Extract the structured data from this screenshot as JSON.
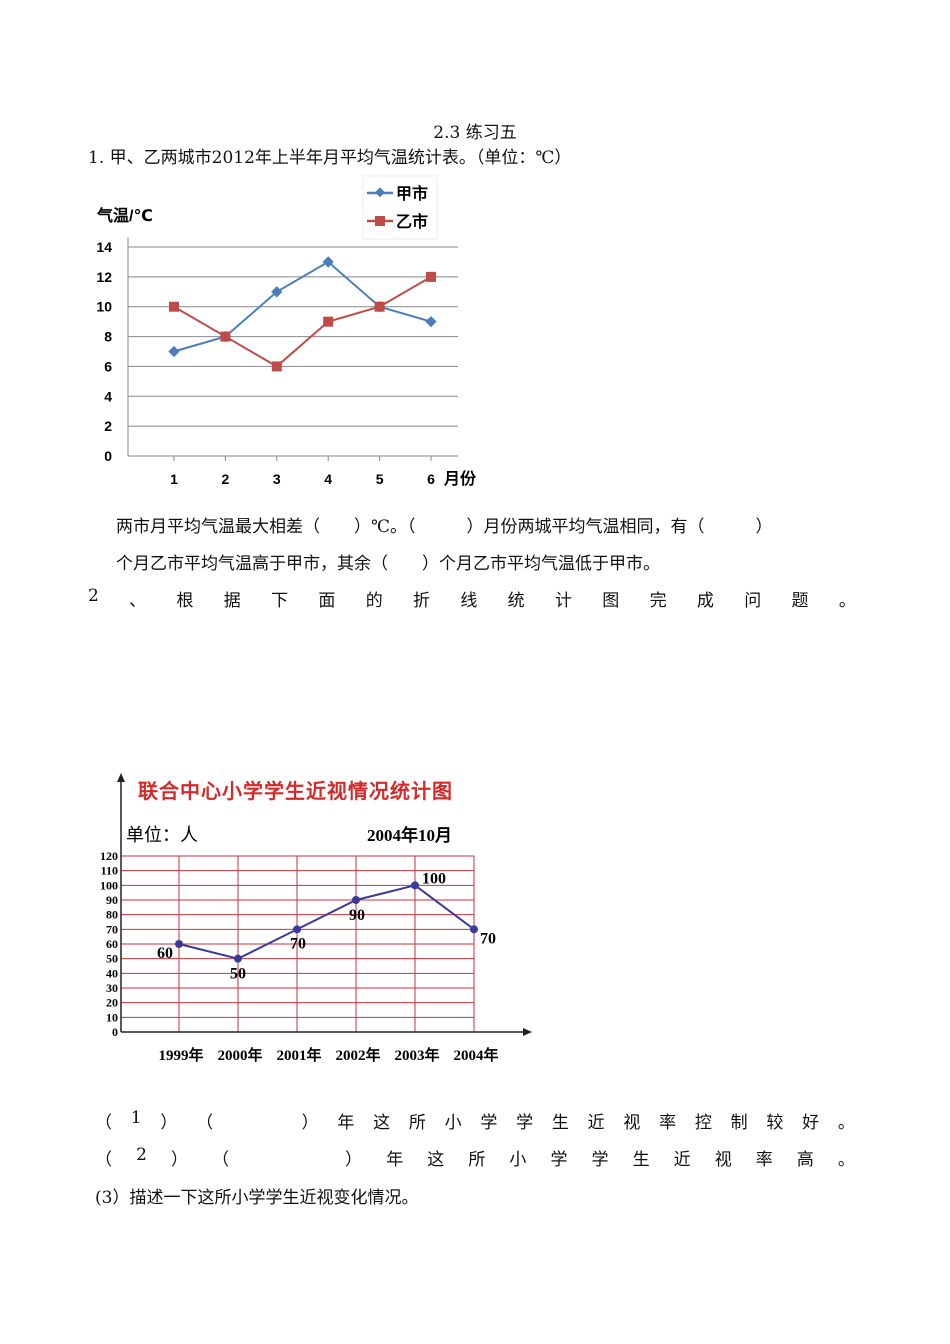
{
  "doc": {
    "title": "2.3 练习五",
    "q1": "1. 甲、乙两城市2012年上半年月平均气温统计表。（单位：℃）",
    "q1_line1": "两市月平均气温最大相差（　　）℃。（　　　）月份两城平均气温相同，有（　　　）",
    "q1_line2": "个月乙市平均气温高于甲市，其余（　　）个月乙市平均气温低于甲市。",
    "q2": [
      "2",
      "、",
      "根",
      "据",
      "下",
      "面",
      "的",
      "折",
      "线",
      "统",
      "计",
      "图",
      "完",
      "成",
      "问",
      "题",
      "。"
    ],
    "sub1": [
      "（",
      "1",
      "）",
      "（",
      "　　　",
      "）",
      "年",
      "这",
      "所",
      "小",
      "学",
      "学",
      "生",
      "近",
      "视",
      "率",
      "控",
      "制",
      "较",
      "好",
      "。"
    ],
    "sub2": [
      "（",
      "2",
      "）",
      "（",
      "　　　　",
      "）",
      "年",
      "这",
      "所",
      "小",
      "学",
      "学",
      "生",
      "近",
      "视",
      "率",
      "高",
      "。"
    ],
    "sub3": "(3）描述一下这所小学学生近视变化情况。"
  },
  "chart_data": [
    {
      "type": "line",
      "ylabel": "气温/℃",
      "xlabel": "月份",
      "categories": [
        "1",
        "2",
        "3",
        "4",
        "5",
        "6"
      ],
      "yticks": [
        "0",
        "2",
        "4",
        "6",
        "8",
        "10",
        "12",
        "14"
      ],
      "ylim": [
        0,
        14
      ],
      "grid": true,
      "legend": "top-right",
      "series": [
        {
          "name": "甲市",
          "values": [
            7,
            8,
            11,
            13,
            10,
            9
          ],
          "color": "#4a7ebb",
          "marker": "diamond"
        },
        {
          "name": "乙市",
          "values": [
            10,
            8,
            6,
            9,
            10,
            12
          ],
          "color": "#be4b48",
          "marker": "square"
        }
      ]
    },
    {
      "type": "line",
      "title": "联合中心小学学生近视情况统计图",
      "unit": "单位：人",
      "date": "2004年10月",
      "categories": [
        "1999年",
        "2000年",
        "2001年",
        "2002年",
        "2003年",
        "2004年"
      ],
      "yticks": [
        "0",
        "10",
        "20",
        "30",
        "40",
        "50",
        "60",
        "70",
        "80",
        "90",
        "100",
        "110",
        "120"
      ],
      "ylim": [
        0,
        120
      ],
      "grid": true,
      "values": [
        60,
        50,
        70,
        90,
        100,
        70
      ],
      "data_labels": [
        "60",
        "50",
        "70",
        "90",
        "100",
        "70"
      ],
      "title_color": "#d42a2a",
      "grid_color": "#c8323c",
      "line_color": "#3a3a9a"
    }
  ]
}
